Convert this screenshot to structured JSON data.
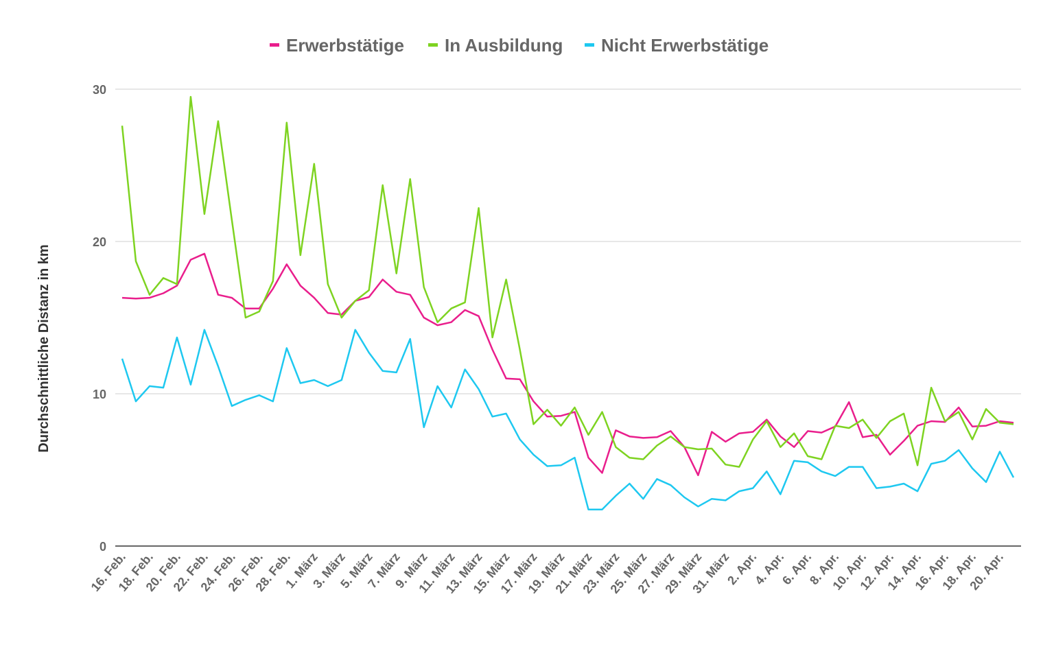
{
  "chart_data": {
    "type": "line",
    "title": "",
    "xlabel": "",
    "ylabel": "Durchschnittliche Distanz in km",
    "ylim": [
      0,
      30
    ],
    "yticks": [
      0,
      10,
      20,
      30
    ],
    "grid": true,
    "legend_position": "top-center",
    "categories": [
      "16. Feb.",
      "17. Feb.",
      "18. Feb.",
      "19. Feb.",
      "20. Feb.",
      "21. Feb.",
      "22. Feb.",
      "23. Feb.",
      "24. Feb.",
      "25. Feb.",
      "26. Feb.",
      "27. Feb.",
      "28. Feb.",
      "29. Feb.",
      "1. März",
      "2. März",
      "3. März",
      "4. März",
      "5. März",
      "6. März",
      "7. März",
      "8. März",
      "9. März",
      "10. März",
      "11. März",
      "12. März",
      "13. März",
      "14. März",
      "15. März",
      "16. März",
      "17. März",
      "18. März",
      "19. März",
      "20. März",
      "21. März",
      "22. März",
      "23. März",
      "24. März",
      "25. März",
      "26. März",
      "27. März",
      "28. März",
      "29. März",
      "30. März",
      "31. März",
      "1. Apr.",
      "2. Apr.",
      "3. Apr.",
      "4. Apr.",
      "5. Apr.",
      "6. Apr.",
      "7. Apr.",
      "8. Apr.",
      "9. Apr.",
      "10. Apr.",
      "11. Apr.",
      "12. Apr.",
      "13. Apr.",
      "14. Apr.",
      "15. Apr.",
      "16. Apr.",
      "17. Apr.",
      "18. Apr.",
      "19. Apr.",
      "20. Apr.",
      "21. Apr."
    ],
    "tick_labels": [
      "16. Feb.",
      "18. Feb.",
      "20. Feb.",
      "22. Feb.",
      "24. Feb.",
      "26. Feb.",
      "28. Feb.",
      "1. März",
      "3. März",
      "5. März",
      "7. März",
      "9. März",
      "11. März",
      "13. März",
      "15. März",
      "17. März",
      "19. März",
      "21. März",
      "23. März",
      "25. März",
      "27. März",
      "29. März",
      "31. März",
      "2. Apr.",
      "4. Apr.",
      "6. Apr.",
      "8. Apr.",
      "10. Apr.",
      "12. Apr.",
      "14. Apr.",
      "16. Apr.",
      "18. Apr.",
      "20. Apr."
    ],
    "series": [
      {
        "name": "Erwerbstätige",
        "color": "#E91E8C",
        "values": [
          16.3,
          16.25,
          16.3,
          16.6,
          17.1,
          18.8,
          19.2,
          16.5,
          16.3,
          15.6,
          15.6,
          16.9,
          18.5,
          17.1,
          16.3,
          15.3,
          15.2,
          16.1,
          16.35,
          17.5,
          16.7,
          16.5,
          15.0,
          14.5,
          14.7,
          15.5,
          15.1,
          12.9,
          11.0,
          10.95,
          9.5,
          8.5,
          8.55,
          8.8,
          5.8,
          4.8,
          7.6,
          7.2,
          7.1,
          7.15,
          7.55,
          6.5,
          4.65,
          7.5,
          6.85,
          7.4,
          7.5,
          8.3,
          7.2,
          6.5,
          7.55,
          7.45,
          7.85,
          9.45,
          7.15,
          7.3,
          6.0,
          6.9,
          7.9,
          8.2,
          8.15,
          9.1,
          7.85,
          7.9,
          8.2,
          8.1
        ]
      },
      {
        "name": "In Ausbildung",
        "color": "#7ED321",
        "values": [
          27.6,
          18.7,
          16.5,
          17.6,
          17.2,
          29.5,
          21.8,
          27.9,
          21.4,
          15.0,
          15.4,
          17.4,
          27.8,
          19.1,
          25.1,
          17.2,
          15.0,
          16.1,
          16.8,
          23.7,
          17.9,
          24.1,
          17.0,
          14.7,
          15.6,
          16.0,
          22.2,
          13.7,
          17.5,
          12.9,
          8.0,
          8.95,
          7.9,
          9.1,
          7.3,
          8.8,
          6.5,
          5.8,
          5.7,
          6.6,
          7.2,
          6.5,
          6.35,
          6.4,
          5.35,
          5.2,
          7.0,
          8.2,
          6.5,
          7.4,
          5.9,
          5.7,
          7.9,
          7.75,
          8.3,
          7.1,
          8.2,
          8.7,
          5.3,
          10.4,
          8.2,
          8.8,
          7.0,
          9.0,
          8.1,
          8.0
        ]
      },
      {
        "name": "Nicht Erwerbstätige",
        "color": "#1EC8F0",
        "values": [
          12.3,
          9.5,
          10.5,
          10.4,
          13.7,
          10.6,
          14.2,
          11.8,
          9.2,
          9.6,
          9.9,
          9.5,
          13.0,
          10.7,
          10.9,
          10.5,
          10.9,
          14.2,
          12.7,
          11.5,
          11.4,
          13.6,
          7.8,
          10.5,
          9.1,
          11.6,
          10.3,
          8.5,
          8.7,
          7.0,
          6.0,
          5.25,
          5.3,
          5.8,
          2.4,
          2.4,
          3.3,
          4.1,
          3.1,
          4.4,
          4.0,
          3.2,
          2.6,
          3.1,
          3.0,
          3.6,
          3.8,
          4.9,
          3.4,
          5.6,
          5.5,
          4.9,
          4.6,
          5.2,
          5.2,
          3.8,
          3.9,
          4.1,
          3.6,
          5.4,
          5.6,
          6.3,
          5.1,
          4.2,
          6.2,
          4.5
        ]
      }
    ]
  }
}
